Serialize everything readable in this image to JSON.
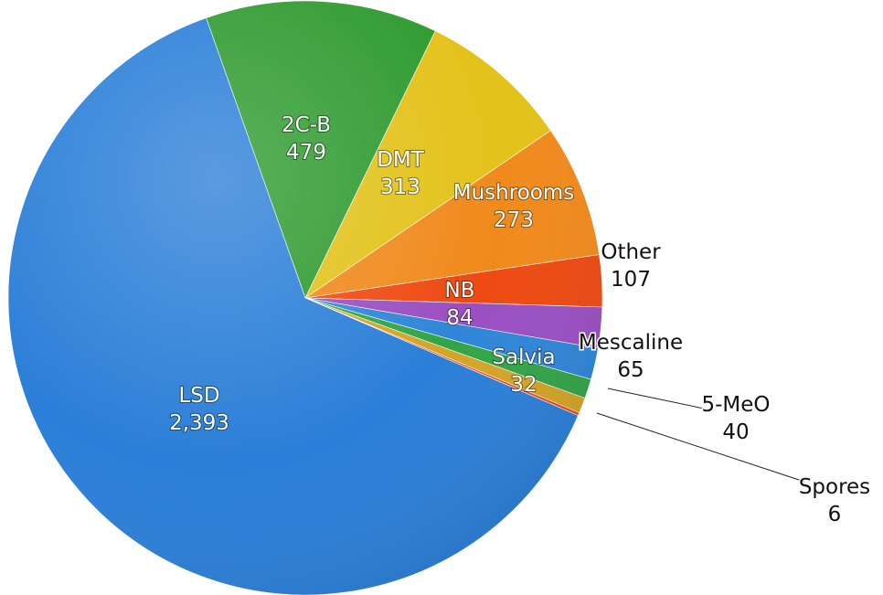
{
  "chart_data": {
    "type": "pie",
    "title": "",
    "slices": [
      {
        "label": "LSD",
        "value": 2393,
        "value_text": "2,393",
        "color": "#2b7fd8"
      },
      {
        "label": "2C-B",
        "value": 479,
        "value_text": "479",
        "color": "#2f9b2f"
      },
      {
        "label": "DMT",
        "value": 313,
        "value_text": "313",
        "color": "#e3c21a"
      },
      {
        "label": "Mushrooms",
        "value": 273,
        "value_text": "273",
        "color": "#f08a1c"
      },
      {
        "label": "Other",
        "value": 107,
        "value_text": "107",
        "color": "#ee4a12"
      },
      {
        "label": "NB",
        "value": 84,
        "value_text": "84",
        "color": "#9a4fc2"
      },
      {
        "label": "Mescaline",
        "value": 65,
        "value_text": "65",
        "color": "#2f86d8"
      },
      {
        "label": "5-MeO",
        "value": 40,
        "value_text": "40",
        "color": "#32a447"
      },
      {
        "label": "Salvia",
        "value": 32,
        "value_text": "32",
        "color": "#d4a428"
      },
      {
        "label": "Spores",
        "value": 6,
        "value_text": "6",
        "color": "#ee4a12"
      }
    ]
  }
}
